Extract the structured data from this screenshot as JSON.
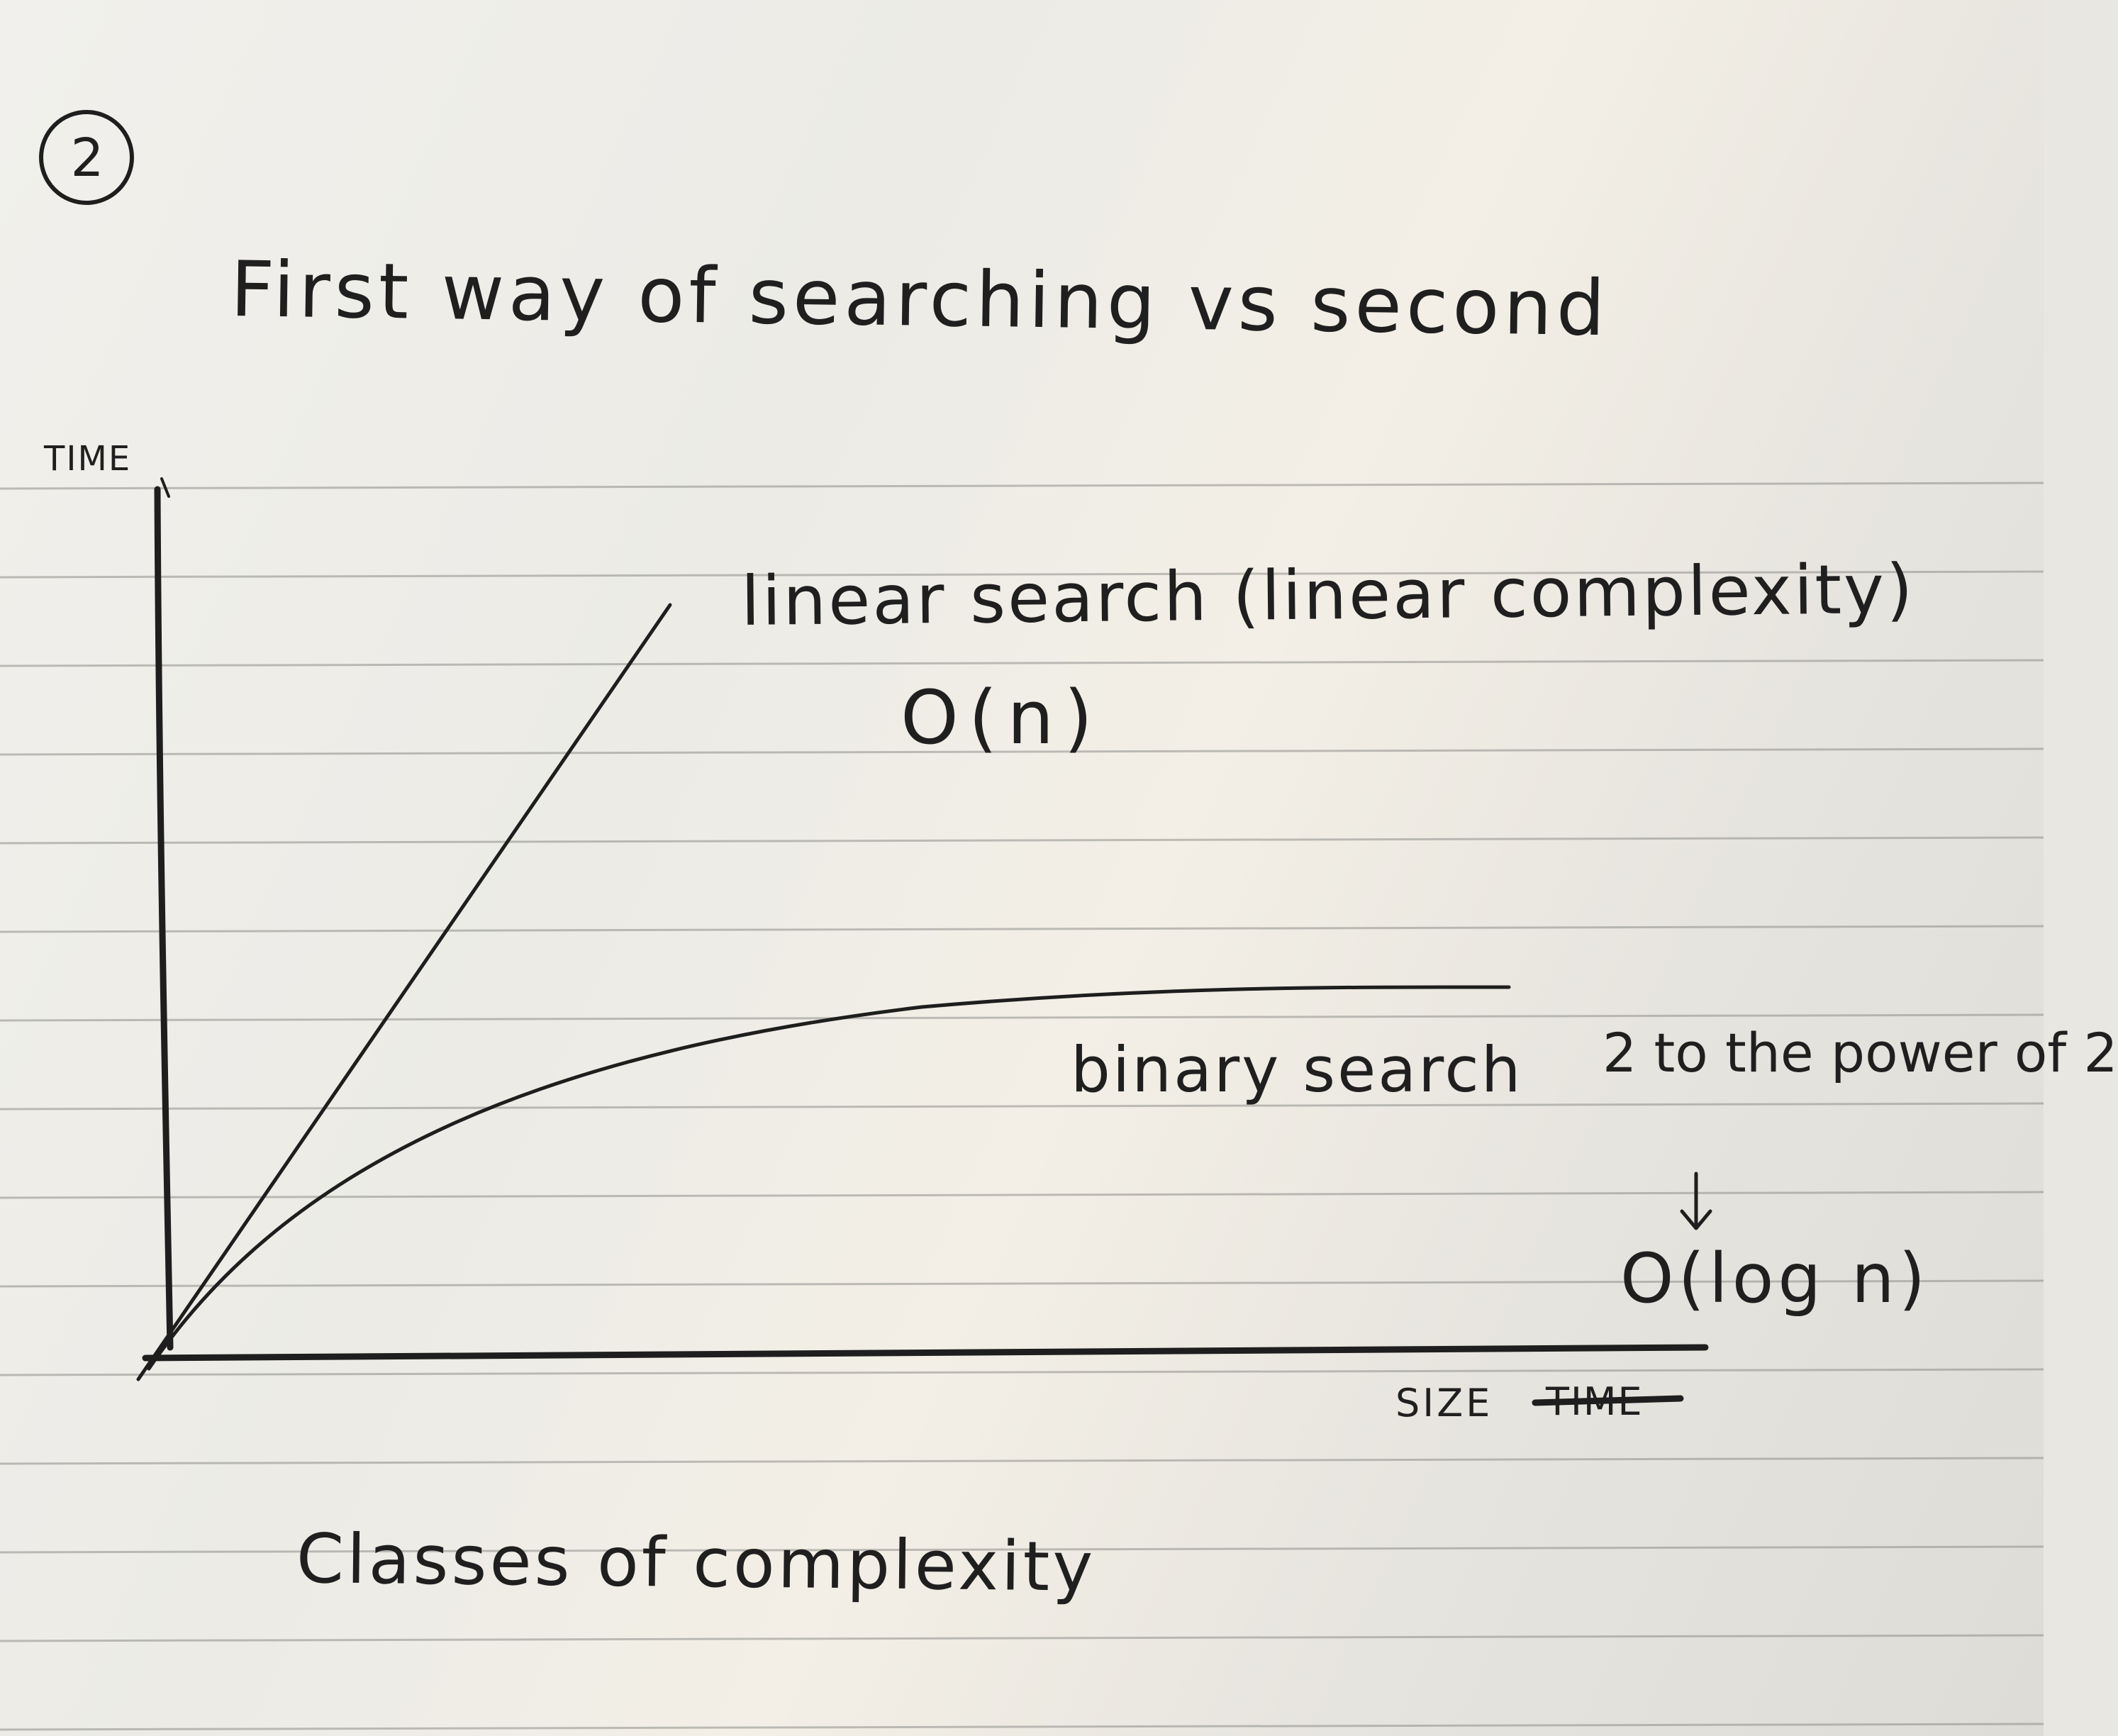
{
  "page": {
    "number": "2",
    "title": "First way of searching vs second",
    "footer_heading": "Classes of complexity"
  },
  "graph": {
    "y_axis_label": "TIME",
    "x_axis_label": "SIZE",
    "crossed_out_word": "TIME",
    "linear": {
      "label": "linear search (linear complexity)",
      "notation": "O(n)"
    },
    "binary": {
      "label": "binary search",
      "note": "2 to the power of 2",
      "notation": "O(log n)"
    }
  },
  "colors": {
    "ink": "#1e1e1e",
    "paper": "#efede8",
    "rule_line": "#8f8f8a"
  }
}
